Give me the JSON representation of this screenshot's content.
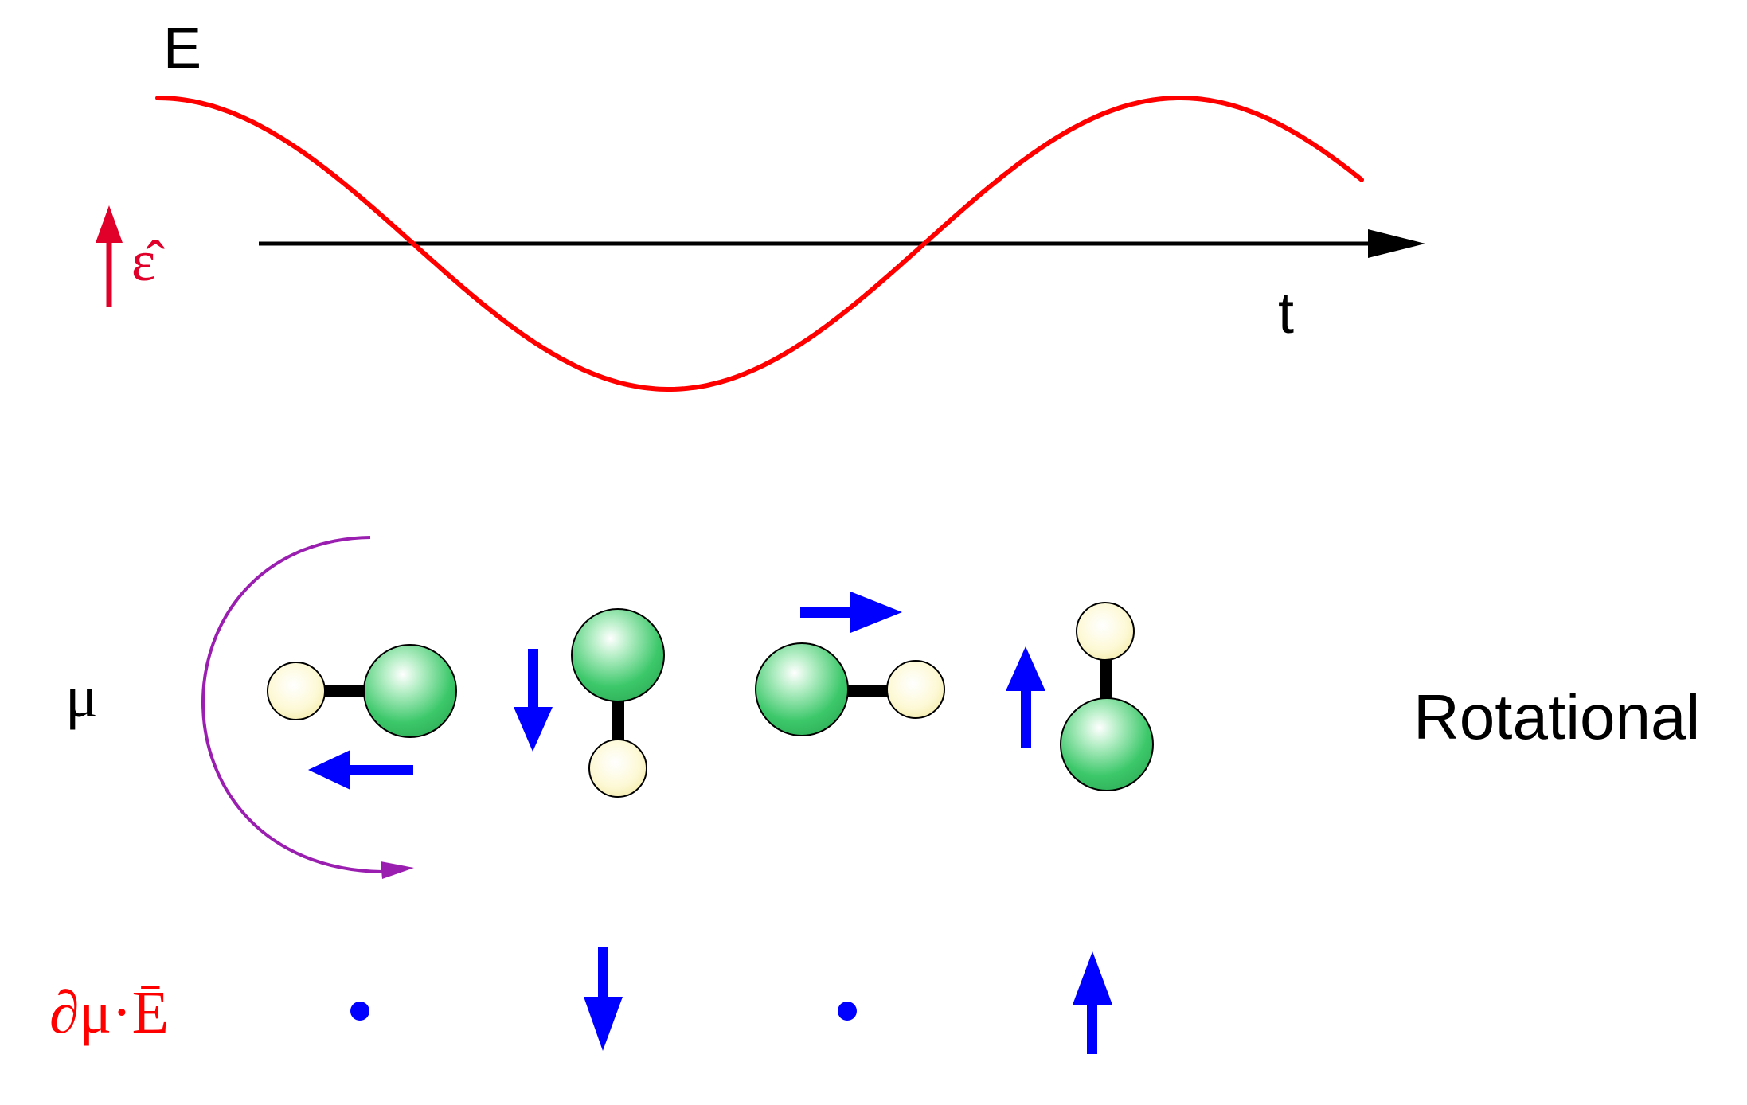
{
  "labels": {
    "field_axis": "E",
    "time_axis": "t",
    "polarization": "ε̂",
    "dipole": "μ",
    "interaction": "∂μ·Ē",
    "mode": "Rotational"
  },
  "wave": {
    "description": "E(t) = cos(t)",
    "phase_start_rad": 0.0,
    "phase_end_rad": 7.4,
    "amplitude": 1
  },
  "colors": {
    "wave": "#ff0000",
    "axis": "#000000",
    "polarization": "#e0002a",
    "rotation_arc": "#9a1fb0",
    "dipole_arrow": "#0000ff",
    "large_atom": "#3cc86a",
    "small_atom": "#fcf6c4",
    "bond": "#000000",
    "interaction_label": "#ff0000"
  },
  "molecules": [
    {
      "name": "molecule-1",
      "orientation": "left"
    },
    {
      "name": "molecule-2",
      "orientation": "down"
    },
    {
      "name": "molecule-3",
      "orientation": "right"
    },
    {
      "name": "molecule-4",
      "orientation": "up"
    }
  ],
  "interaction_markers": [
    "dot",
    "down-arrow",
    "dot",
    "up-arrow"
  ]
}
